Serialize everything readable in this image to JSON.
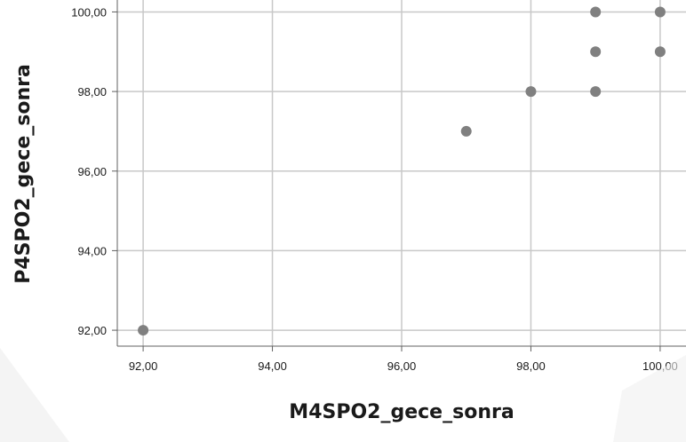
{
  "chart_data": {
    "type": "scatter",
    "title": "",
    "xlabel": "M4SPO2_gece_sonra",
    "ylabel": "P4SPO2_gece_sonra",
    "xlim": [
      91.6,
      100.4
    ],
    "ylim": [
      91.6,
      100.3
    ],
    "x_ticks": [
      92,
      94,
      96,
      98,
      100
    ],
    "y_ticks": [
      92,
      94,
      96,
      98,
      100
    ],
    "x_tick_labels": [
      "92,00",
      "94,00",
      "96,00",
      "98,00",
      "100,00"
    ],
    "y_tick_labels": [
      "92,00",
      "94,00",
      "96,00",
      "98,00",
      "100,00"
    ],
    "grid": true,
    "marker_color": "#808080",
    "points": [
      {
        "x": 92,
        "y": 92
      },
      {
        "x": 97,
        "y": 97
      },
      {
        "x": 98,
        "y": 98
      },
      {
        "x": 99,
        "y": 100
      },
      {
        "x": 99,
        "y": 99
      },
      {
        "x": 99,
        "y": 98
      },
      {
        "x": 100,
        "y": 100
      },
      {
        "x": 100,
        "y": 99
      }
    ]
  },
  "colors": {
    "background": "#ffffff",
    "grid": "#c8c8c8",
    "axis": "#606060",
    "marker": "#808080"
  }
}
